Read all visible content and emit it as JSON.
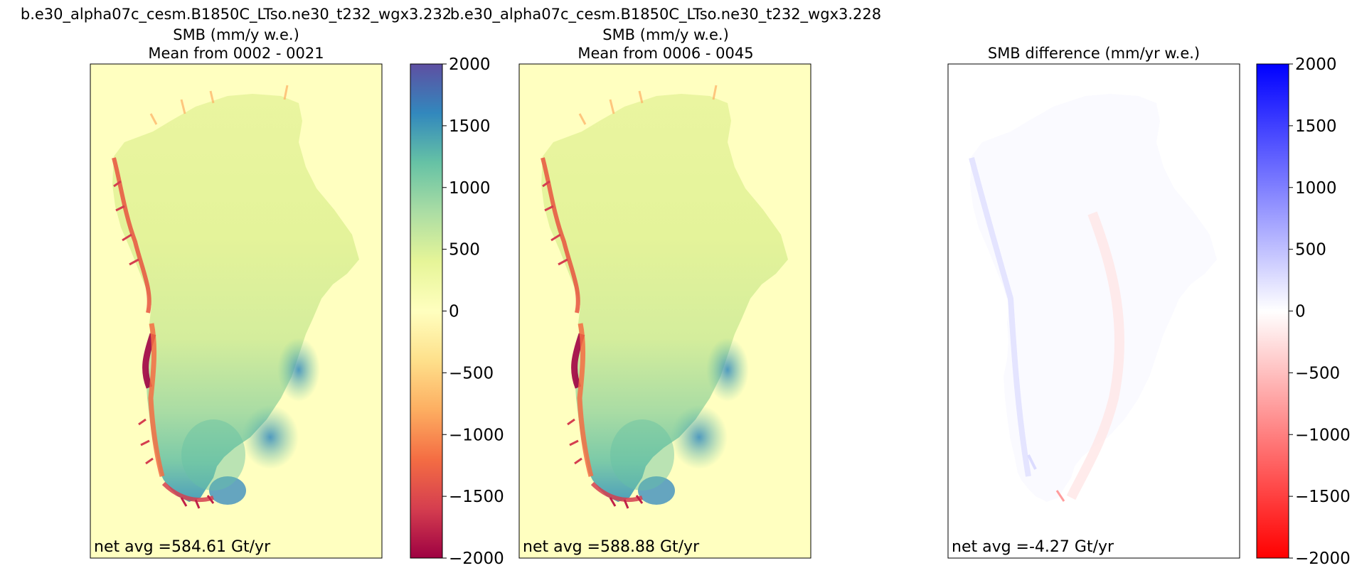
{
  "chart_data": [
    {
      "type": "heatmap",
      "title_lines": [
        "b.e30_alpha07c_cesm.B1850C_LTso.ne30_t232_wgx3.232",
        "SMB (mm/y w.e.)",
        "Mean from 0002 - 0021"
      ],
      "annotation": "net avg =584.61 Gt/yr",
      "colormap": "Spectral",
      "colorbar": {
        "ticks": [
          2000,
          1500,
          1000,
          500,
          0,
          -500,
          -1000,
          -1500,
          -2000
        ],
        "tick_labels": [
          "2000",
          "1500",
          "1000",
          "500",
          "0",
          "−500",
          "−1000",
          "−1500",
          "−2000"
        ],
        "range": [
          -2000,
          2000
        ]
      },
      "colors": {
        "background": "#ffffc0",
        "high": "#5e4fa2",
        "low": "#9e0142"
      }
    },
    {
      "type": "heatmap",
      "title_lines": [
        "b.e30_alpha07c_cesm.B1850C_LTso.ne30_t232_wgx3.228",
        "SMB (mm/y w.e.)",
        "Mean from 0006 - 0045"
      ],
      "annotation": "net avg =588.88 Gt/yr",
      "colormap": "Spectral",
      "colors": {
        "background": "#ffffc0"
      }
    },
    {
      "type": "heatmap",
      "title_lines": [
        "SMB difference (mm/yr w.e.)"
      ],
      "annotation": "net avg =-4.27 Gt/yr",
      "colormap": "bwr",
      "colorbar": {
        "ticks": [
          2000,
          1500,
          1000,
          500,
          0,
          -500,
          -1000,
          -1500,
          -2000
        ],
        "tick_labels": [
          "2000",
          "1500",
          "1000",
          "500",
          "0",
          "−500",
          "−1000",
          "−1500",
          "−2000"
        ],
        "range": [
          -2000,
          2000
        ]
      },
      "colors": {
        "background": "#ffffff",
        "high": "#0000ff",
        "low": "#ff0000"
      }
    }
  ]
}
